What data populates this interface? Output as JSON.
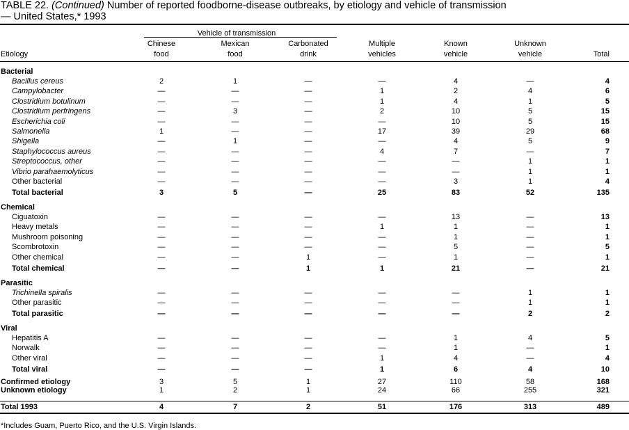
{
  "header": {
    "table_number": "TABLE 22.",
    "continued": "(Continued)",
    "title_line1": "Number of reported foodborne-disease  outbreaks, by etiology  and vehicle of transmission",
    "title_line2": "— United States,*  1993"
  },
  "table": {
    "group_header": "Vehicle of transmission",
    "columns": [
      [
        "Etiology"
      ],
      [
        "Chinese",
        "food"
      ],
      [
        "Mexican",
        "food"
      ],
      [
        "Carbonated",
        "drink"
      ],
      [
        "Multiple",
        "vehicles"
      ],
      [
        "Known",
        "vehicle"
      ],
      [
        "Unknown",
        "vehicle"
      ],
      [
        "Total"
      ]
    ],
    "sections": [
      {
        "label": "Bacterial",
        "rows": [
          {
            "label": "Bacillus cereus",
            "italic": true,
            "values": [
              2,
              1,
              "—",
              "—",
              4,
              "—",
              4
            ]
          },
          {
            "label": "Campylobacter",
            "italic": true,
            "values": [
              "—",
              "—",
              "—",
              1,
              2,
              4,
              6
            ]
          },
          {
            "label": "Clostridium botulinum",
            "italic": true,
            "values": [
              "—",
              "—",
              "—",
              1,
              4,
              1,
              5
            ]
          },
          {
            "label": "Clostridium perfringens",
            "italic": true,
            "values": [
              "—",
              3,
              "—",
              2,
              10,
              5,
              15
            ]
          },
          {
            "label": "Escherichia coli",
            "italic": true,
            "values": [
              "—",
              "—",
              "—",
              "—",
              10,
              5,
              15
            ]
          },
          {
            "label": "Salmonella",
            "italic": true,
            "values": [
              1,
              "—",
              "—",
              17,
              39,
              29,
              68
            ]
          },
          {
            "label": "Shigella",
            "italic": true,
            "values": [
              "—",
              1,
              "—",
              "—",
              4,
              5,
              9
            ]
          },
          {
            "label": "Staphylococcus aureus",
            "italic": true,
            "values": [
              "—",
              "—",
              "—",
              4,
              7,
              "—",
              7
            ]
          },
          {
            "label": "Streptococcus, other",
            "italic": true,
            "values": [
              "—",
              "—",
              "—",
              "—",
              "—",
              1,
              1
            ]
          },
          {
            "label": "Vibrio parahaemolyticus",
            "italic": true,
            "values": [
              "—",
              "—",
              "—",
              "—",
              "—",
              1,
              1
            ]
          },
          {
            "label": "Other bacterial",
            "italic": false,
            "values": [
              "—",
              "—",
              "—",
              "—",
              3,
              1,
              4
            ]
          }
        ],
        "total": {
          "label": "Total bacterial",
          "values": [
            3,
            5,
            "—",
            25,
            83,
            52,
            135
          ]
        }
      },
      {
        "label": "Chemical",
        "rows": [
          {
            "label": "Ciguatoxin",
            "italic": false,
            "values": [
              "—",
              "—",
              "—",
              "—",
              13,
              "—",
              13
            ]
          },
          {
            "label": "Heavy metals",
            "italic": false,
            "values": [
              "—",
              "—",
              "—",
              1,
              1,
              "—",
              1
            ]
          },
          {
            "label": "Mushroom poisoning",
            "italic": false,
            "values": [
              "—",
              "—",
              "—",
              "—",
              1,
              "—",
              1
            ]
          },
          {
            "label": "Scombrotoxin",
            "italic": false,
            "values": [
              "—",
              "—",
              "—",
              "—",
              5,
              "—",
              5
            ]
          },
          {
            "label": "Other chemical",
            "italic": false,
            "values": [
              "—",
              "—",
              1,
              "—",
              1,
              "—",
              1
            ]
          }
        ],
        "total": {
          "label": "Total chemical",
          "values": [
            "—",
            "—",
            1,
            1,
            21,
            "—",
            21
          ]
        }
      },
      {
        "label": "Parasitic",
        "rows": [
          {
            "label": "Trichinella spiralis",
            "italic": true,
            "values": [
              "—",
              "—",
              "—",
              "—",
              "—",
              1,
              1
            ]
          },
          {
            "label": "Other parasitic",
            "italic": false,
            "values": [
              "—",
              "—",
              "—",
              "—",
              "—",
              1,
              1
            ]
          }
        ],
        "total": {
          "label": "Total parasitic",
          "values": [
            "—",
            "—",
            "—",
            "—",
            "—",
            2,
            2
          ]
        }
      },
      {
        "label": "Viral",
        "rows": [
          {
            "label": "Hepatitis A",
            "italic": false,
            "values": [
              "—",
              "—",
              "—",
              "—",
              1,
              4,
              5
            ]
          },
          {
            "label": "Norwalk",
            "italic": false,
            "values": [
              "—",
              "—",
              "—",
              "—",
              1,
              "—",
              1
            ]
          },
          {
            "label": "Other viral",
            "italic": false,
            "values": [
              "—",
              "—",
              "—",
              1,
              4,
              "—",
              4
            ]
          }
        ],
        "total": {
          "label": "Total viral",
          "values": [
            "—",
            "—",
            "—",
            1,
            6,
            4,
            10
          ]
        }
      }
    ],
    "summary": [
      {
        "label": "Confirmed etiology",
        "values": [
          3,
          5,
          1,
          27,
          110,
          58,
          168
        ]
      },
      {
        "label": "Unknown etiology",
        "values": [
          1,
          2,
          1,
          24,
          66,
          255,
          321
        ]
      }
    ],
    "grand_total": {
      "label": "Total 1993",
      "values": [
        4,
        7,
        2,
        51,
        176,
        313,
        489
      ]
    }
  },
  "footnote": "*Includes Guam, Puerto Rico, and the U.S. Virgin Islands."
}
